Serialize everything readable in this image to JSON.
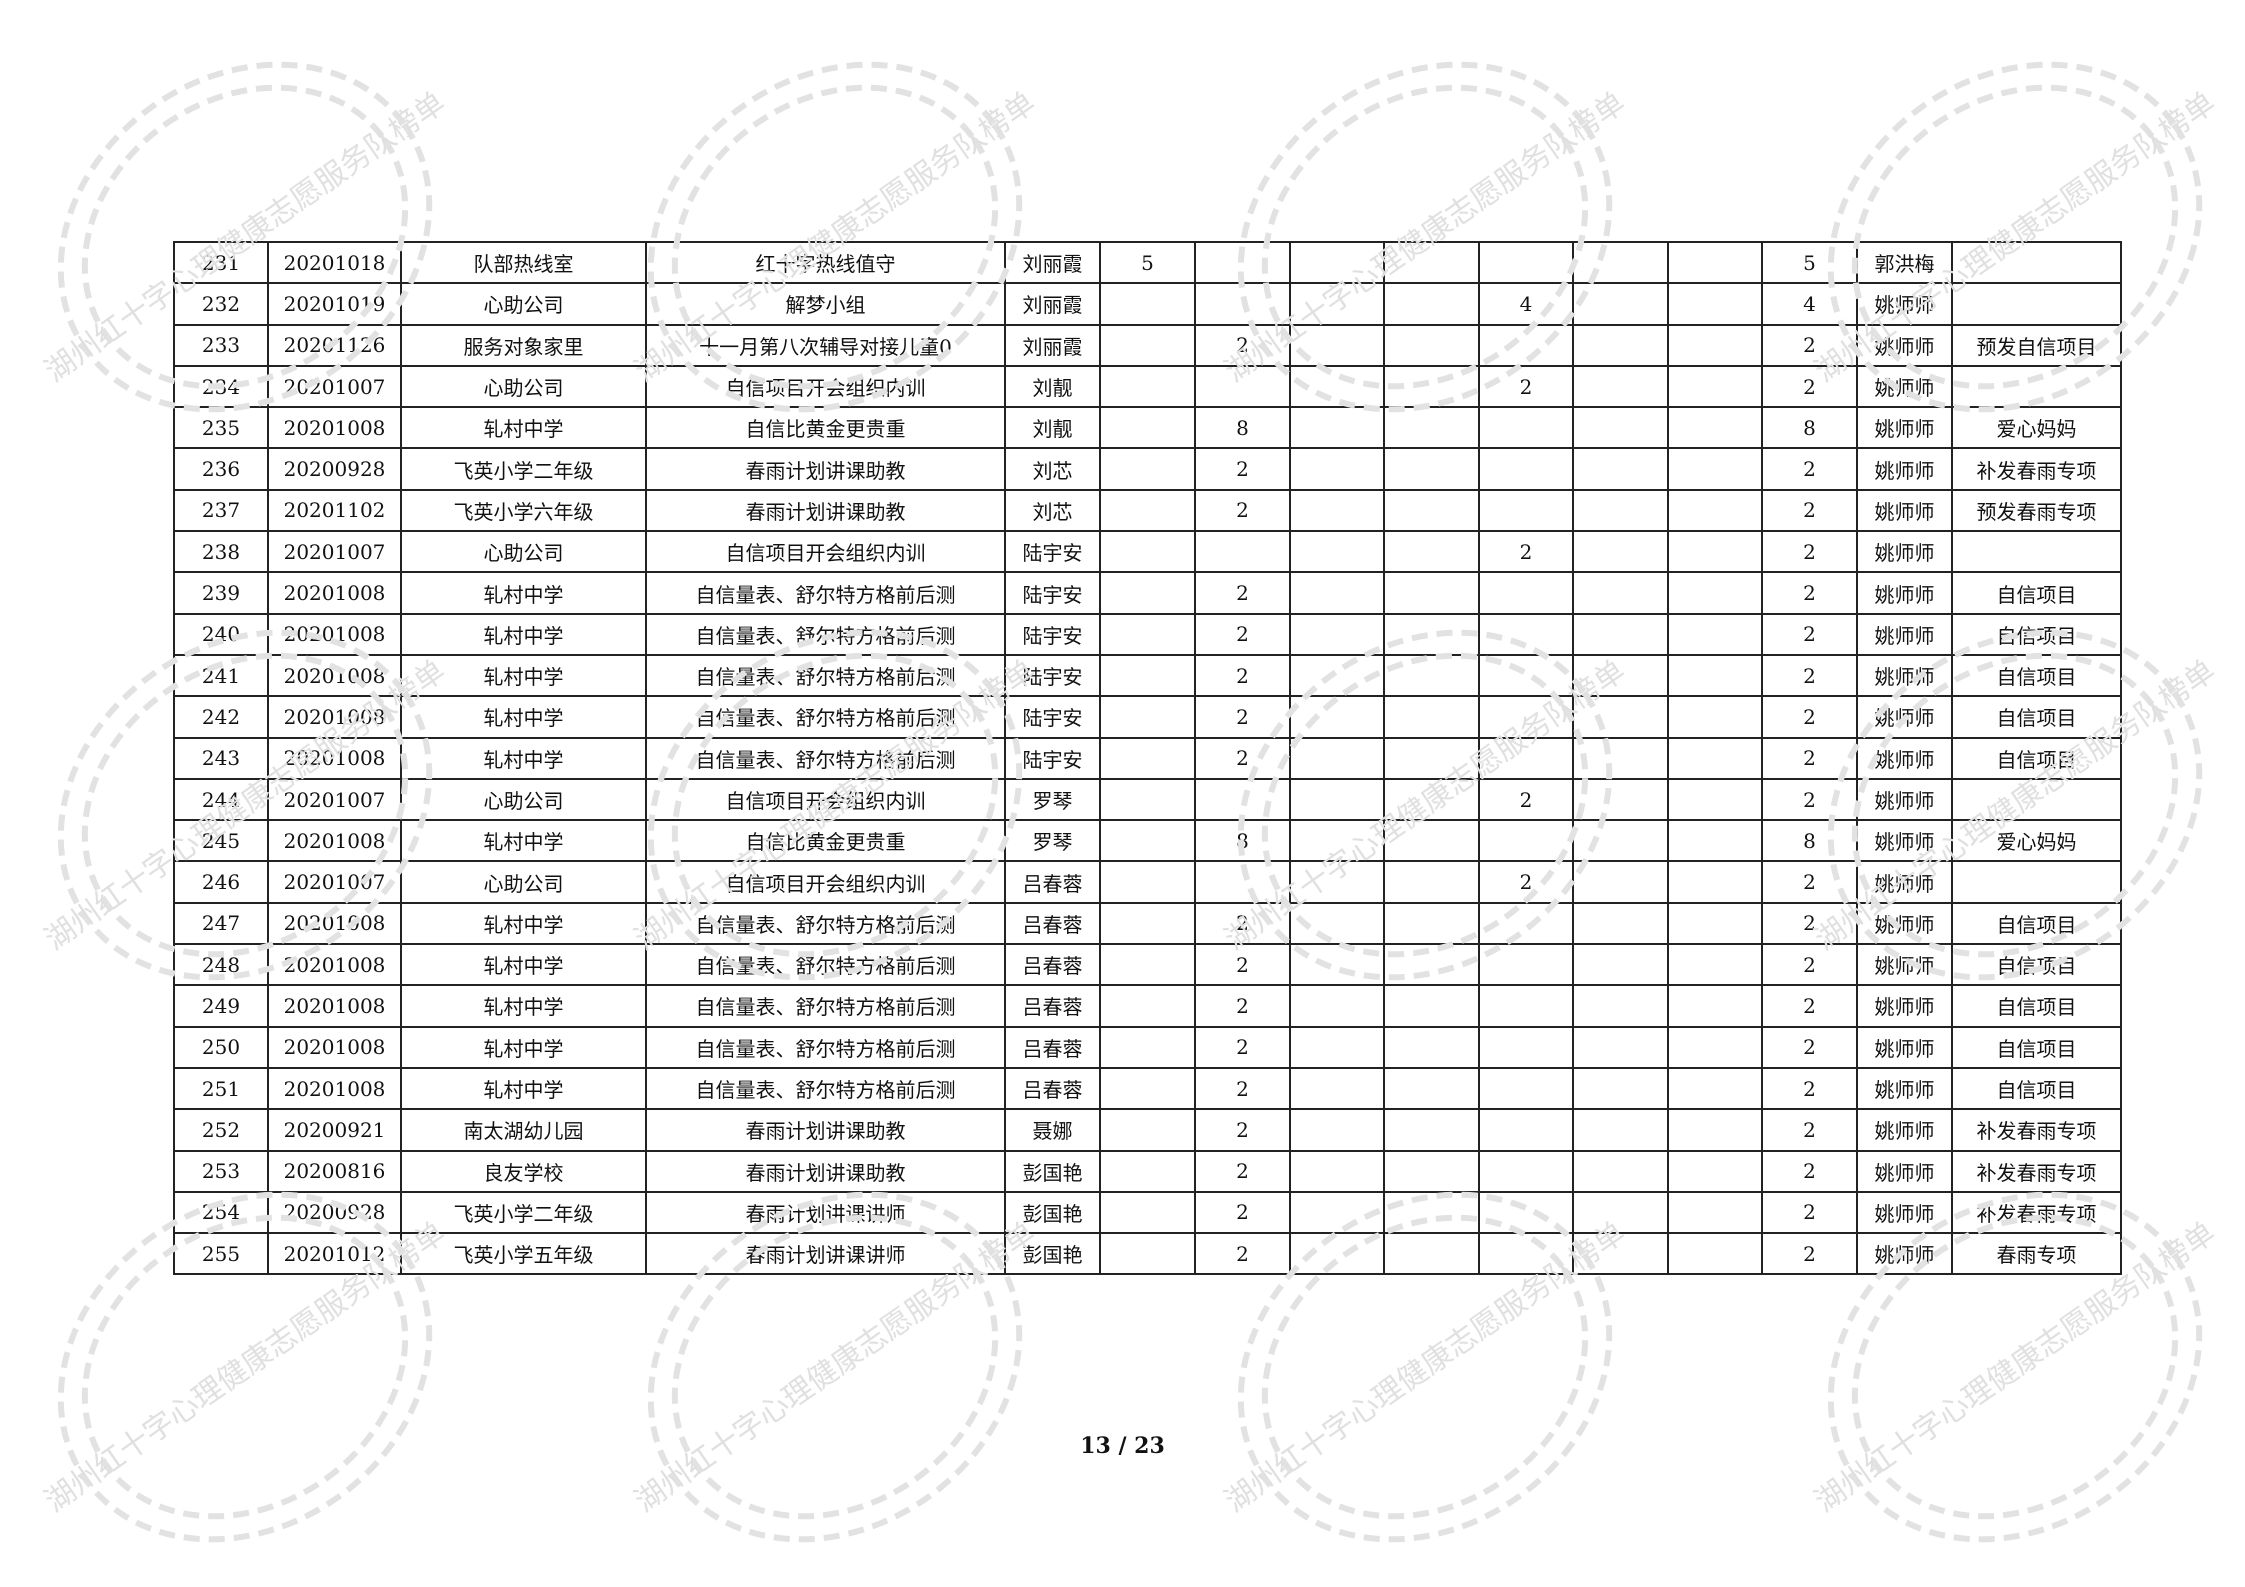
{
  "watermark_text": "湖州红十字心理健康志愿服务队榜单",
  "rows": [
    [
      "231",
      "20201018",
      "队部热线室",
      "红十字热线值守",
      "刘丽霞",
      "5",
      "",
      "",
      "",
      "",
      "",
      "",
      "5",
      "郭洪梅",
      ""
    ],
    [
      "232",
      "20201019",
      "心助公司",
      "解梦小组",
      "刘丽霞",
      "",
      "",
      "",
      "",
      "4",
      "",
      "",
      "4",
      "姚师师",
      ""
    ],
    [
      "233",
      "20201126",
      "服务对象家里",
      "十一月第八次辅导对接儿童0",
      "刘丽霞",
      "",
      "2",
      "",
      "",
      "",
      "",
      "",
      "2",
      "姚师师",
      "预发自信项目"
    ],
    [
      "234",
      "20201007",
      "心助公司",
      "自信项目开会组织内训",
      "刘靓",
      "",
      "",
      "",
      "",
      "2",
      "",
      "",
      "2",
      "姚师师",
      ""
    ],
    [
      "235",
      "20201008",
      "轧村中学",
      "自信比黄金更贵重",
      "刘靓",
      "",
      "8",
      "",
      "",
      "",
      "",
      "",
      "8",
      "姚师师",
      "爱心妈妈"
    ],
    [
      "236",
      "20200928",
      "飞英小学二年级",
      "春雨计划讲课助教",
      "刘芯",
      "",
      "2",
      "",
      "",
      "",
      "",
      "",
      "2",
      "姚师师",
      "补发春雨专项"
    ],
    [
      "237",
      "20201102",
      "飞英小学六年级",
      "春雨计划讲课助教",
      "刘芯",
      "",
      "2",
      "",
      "",
      "",
      "",
      "",
      "2",
      "姚师师",
      "预发春雨专项"
    ],
    [
      "238",
      "20201007",
      "心助公司",
      "自信项目开会组织内训",
      "陆宇安",
      "",
      "",
      "",
      "",
      "2",
      "",
      "",
      "2",
      "姚师师",
      ""
    ],
    [
      "239",
      "20201008",
      "轧村中学",
      "自信量表、舒尔特方格前后测",
      "陆宇安",
      "",
      "2",
      "",
      "",
      "",
      "",
      "",
      "2",
      "姚师师",
      "自信项目"
    ],
    [
      "240",
      "20201008",
      "轧村中学",
      "自信量表、舒尔特方格前后测",
      "陆宇安",
      "",
      "2",
      "",
      "",
      "",
      "",
      "",
      "2",
      "姚师师",
      "自信项目"
    ],
    [
      "241",
      "20201008",
      "轧村中学",
      "自信量表、舒尔特方格前后测",
      "陆宇安",
      "",
      "2",
      "",
      "",
      "",
      "",
      "",
      "2",
      "姚师师",
      "自信项目"
    ],
    [
      "242",
      "20201008",
      "轧村中学",
      "自信量表、舒尔特方格前后测",
      "陆宇安",
      "",
      "2",
      "",
      "",
      "",
      "",
      "",
      "2",
      "姚师师",
      "自信项目"
    ],
    [
      "243",
      "20201008",
      "轧村中学",
      "自信量表、舒尔特方格前后测",
      "陆宇安",
      "",
      "2",
      "",
      "",
      "",
      "",
      "",
      "2",
      "姚师师",
      "自信项目"
    ],
    [
      "244",
      "20201007",
      "心助公司",
      "自信项目开会组织内训",
      "罗琴",
      "",
      "",
      "",
      "",
      "2",
      "",
      "",
      "2",
      "姚师师",
      ""
    ],
    [
      "245",
      "20201008",
      "轧村中学",
      "自信比黄金更贵重",
      "罗琴",
      "",
      "8",
      "",
      "",
      "",
      "",
      "",
      "8",
      "姚师师",
      "爱心妈妈"
    ],
    [
      "246",
      "20201007",
      "心助公司",
      "自信项目开会组织内训",
      "吕春蓉",
      "",
      "",
      "",
      "",
      "2",
      "",
      "",
      "2",
      "姚师师",
      ""
    ],
    [
      "247",
      "20201008",
      "轧村中学",
      "自信量表、舒尔特方格前后测",
      "吕春蓉",
      "",
      "2",
      "",
      "",
      "",
      "",
      "",
      "2",
      "姚师师",
      "自信项目"
    ],
    [
      "248",
      "20201008",
      "轧村中学",
      "自信量表、舒尔特方格前后测",
      "吕春蓉",
      "",
      "2",
      "",
      "",
      "",
      "",
      "",
      "2",
      "姚师师",
      "自信项目"
    ],
    [
      "249",
      "20201008",
      "轧村中学",
      "自信量表、舒尔特方格前后测",
      "吕春蓉",
      "",
      "2",
      "",
      "",
      "",
      "",
      "",
      "2",
      "姚师师",
      "自信项目"
    ],
    [
      "250",
      "20201008",
      "轧村中学",
      "自信量表、舒尔特方格前后测",
      "吕春蓉",
      "",
      "2",
      "",
      "",
      "",
      "",
      "",
      "2",
      "姚师师",
      "自信项目"
    ],
    [
      "251",
      "20201008",
      "轧村中学",
      "自信量表、舒尔特方格前后测",
      "吕春蓉",
      "",
      "2",
      "",
      "",
      "",
      "",
      "",
      "2",
      "姚师师",
      "自信项目"
    ],
    [
      "252",
      "20200921",
      "南太湖幼儿园",
      "春雨计划讲课助教",
      "聂娜",
      "",
      "2",
      "",
      "",
      "",
      "",
      "",
      "2",
      "姚师师",
      "补发春雨专项"
    ],
    [
      "253",
      "20200816",
      "良友学校",
      "春雨计划讲课助教",
      "彭国艳",
      "",
      "2",
      "",
      "",
      "",
      "",
      "",
      "2",
      "姚师师",
      "补发春雨专项"
    ],
    [
      "254",
      "20200928",
      "飞英小学二年级",
      "春雨计划讲课讲师",
      "彭国艳",
      "",
      "2",
      "",
      "",
      "",
      "",
      "",
      "2",
      "姚师师",
      "补发春雨专项"
    ],
    [
      "255",
      "20201012",
      "飞英小学五年级",
      "春雨计划讲课讲师",
      "彭国艳",
      "",
      "2",
      "",
      "",
      "",
      "",
      "",
      "2",
      "姚师师",
      "春雨专项"
    ]
  ],
  "page_number": "13 / 23"
}
